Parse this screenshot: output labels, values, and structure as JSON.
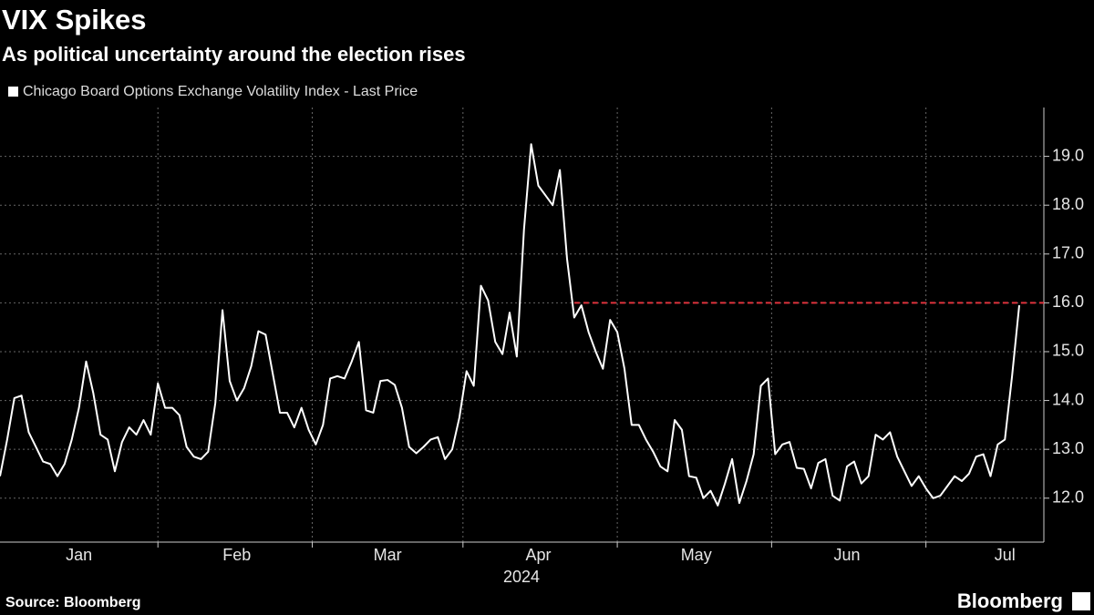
{
  "chart_data": {
    "type": "line",
    "title": "VIX Spikes",
    "subtitle": "As political uncertainty around the election rises",
    "source": "Source: Bloomberg",
    "logo": "Bloomberg",
    "x_year_label": "2024",
    "categories": [
      null,
      null,
      null,
      null,
      null,
      null,
      null,
      null,
      null,
      null,
      null,
      "Jan",
      null,
      null,
      null,
      null,
      null,
      null,
      null,
      null,
      null,
      null,
      null,
      null,
      null,
      null,
      null,
      null,
      null,
      null,
      null,
      null,
      null,
      "Feb",
      null,
      null,
      null,
      null,
      null,
      null,
      null,
      null,
      null,
      null,
      null,
      null,
      null,
      null,
      null,
      null,
      null,
      null,
      null,
      null,
      "Mar",
      null,
      null,
      null,
      null,
      null,
      null,
      null,
      null,
      null,
      null,
      null,
      null,
      null,
      null,
      null,
      null,
      null,
      null,
      null,
      null,
      "Apr",
      null,
      null,
      null,
      null,
      null,
      null,
      null,
      null,
      null,
      null,
      null,
      null,
      null,
      null,
      null,
      null,
      null,
      null,
      null,
      null,
      null,
      "May",
      null,
      null,
      null,
      null,
      null,
      null,
      null,
      null,
      null,
      null,
      null,
      null,
      null,
      null,
      null,
      null,
      null,
      null,
      null,
      null,
      "Jun",
      null,
      null,
      null,
      null,
      null,
      null,
      null,
      null,
      null,
      null,
      null,
      null,
      null,
      null,
      null,
      null,
      null,
      null,
      null,
      null,
      null,
      "Jul",
      null,
      null
    ],
    "series": [
      {
        "name": "Chicago Board Options Exchange Volatility Index - Last Price",
        "color": "#ffffff",
        "values": [
          12.45,
          13.2,
          14.05,
          14.1,
          13.35,
          13.05,
          12.75,
          12.7,
          12.45,
          12.7,
          13.2,
          13.85,
          14.8,
          14.15,
          13.3,
          13.2,
          12.55,
          13.15,
          13.45,
          13.3,
          13.6,
          13.3,
          14.35,
          13.85,
          13.85,
          13.7,
          13.05,
          12.85,
          12.8,
          12.95,
          13.95,
          15.85,
          14.4,
          14.0,
          14.25,
          14.7,
          15.42,
          15.35,
          14.55,
          13.75,
          13.75,
          13.45,
          13.85,
          13.4,
          13.1,
          13.5,
          14.45,
          14.5,
          14.45,
          14.8,
          15.2,
          13.8,
          13.75,
          14.4,
          14.42,
          14.32,
          13.85,
          13.05,
          12.92,
          13.05,
          13.2,
          13.25,
          12.8,
          13.0,
          13.65,
          14.6,
          14.3,
          16.35,
          16.05,
          15.2,
          14.95,
          15.8,
          14.9,
          17.5,
          19.25,
          18.4,
          18.2,
          18.0,
          18.72,
          16.9,
          15.7,
          15.95,
          15.4,
          15.0,
          14.65,
          15.65,
          15.4,
          14.65,
          13.5,
          13.5,
          13.2,
          12.95,
          12.65,
          12.55,
          13.6,
          13.4,
          12.45,
          12.42,
          12.0,
          12.15,
          11.85,
          12.3,
          12.8,
          11.9,
          12.35,
          12.9,
          14.3,
          14.45,
          12.9,
          13.1,
          13.15,
          12.62,
          12.6,
          12.2,
          12.72,
          12.8,
          12.05,
          11.95,
          12.65,
          12.75,
          12.3,
          12.45,
          13.3,
          13.2,
          13.35,
          12.85,
          12.55,
          12.25,
          12.45,
          12.2,
          12.0,
          12.05,
          12.25,
          12.45,
          12.35,
          12.5,
          12.85,
          12.9,
          12.45,
          13.1,
          13.2,
          14.5,
          15.95
        ]
      }
    ],
    "reference_line": {
      "value": 16,
      "color": "#e0323c"
    },
    "ylim": [
      11.1,
      20.0
    ],
    "yticks": [
      {
        "value": 12,
        "label": "12.0"
      },
      {
        "value": 13,
        "label": "13.0"
      },
      {
        "value": 14,
        "label": "14.0"
      },
      {
        "value": 15,
        "label": "15.0"
      },
      {
        "value": 16,
        "label": "16.0"
      },
      {
        "value": 17,
        "label": "17.0"
      },
      {
        "value": 18,
        "label": "18.0"
      },
      {
        "value": 19,
        "label": "19.0"
      }
    ],
    "grid": true
  }
}
